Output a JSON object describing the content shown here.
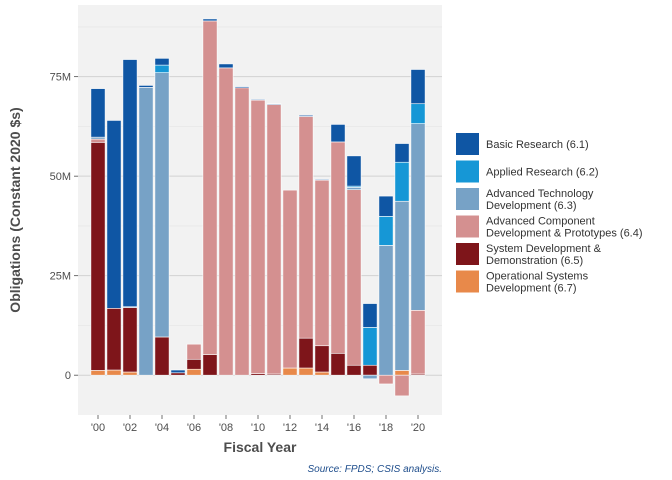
{
  "chart_data": {
    "type": "bar",
    "stacked": true,
    "xlabel": "Fiscal Year",
    "ylabel": "Obligations (Constant 2020 $s)",
    "caption": "Source: FPDS; CSIS analysis.",
    "ylim": [
      -10,
      93
    ],
    "yticks": [
      0,
      25,
      50,
      75
    ],
    "ytick_labels": [
      "0",
      "25M",
      "50M",
      "75M"
    ],
    "grid": true,
    "legend_position": "right",
    "categories": [
      2000,
      2001,
      2002,
      2003,
      2004,
      2005,
      2006,
      2007,
      2008,
      2009,
      2010,
      2011,
      2012,
      2013,
      2014,
      2015,
      2016,
      2017,
      2018,
      2019,
      2020
    ],
    "xtick_labels": [
      "'00",
      "'02",
      "'04",
      "'06",
      "'08",
      "'10",
      "'12",
      "'14",
      "'16",
      "'18",
      "'20"
    ],
    "xtick_years": [
      2000,
      2002,
      2004,
      2006,
      2008,
      2010,
      2012,
      2014,
      2016,
      2018,
      2020
    ],
    "series": [
      {
        "name": "Operational Systems Development (6.7)",
        "color": "#e8894a",
        "values": [
          1.2,
          1.3,
          0.8,
          0,
          0,
          0,
          1.5,
          0,
          0,
          0,
          0,
          0,
          1.8,
          1.8,
          0.8,
          0,
          0,
          0,
          0,
          1.2,
          0
        ]
      },
      {
        "name": "System Development & Demonstration (6.5)",
        "color": "#7e151a",
        "values": [
          57.3,
          15.5,
          16.2,
          0,
          9.6,
          0.6,
          2.5,
          5.2,
          0,
          0,
          0.4,
          0.3,
          0,
          7.5,
          6.6,
          5.5,
          2.5,
          2.5,
          0,
          0,
          0.3
        ]
      },
      {
        "name": "Advanced Component Development & Prototypes (6.4)",
        "color": "#d49090",
        "values": [
          0.8,
          0,
          0,
          0,
          0,
          0,
          3.8,
          83.8,
          77.2,
          72.2,
          68.7,
          67.7,
          44.7,
          55.7,
          41.6,
          53.1,
          44.1,
          0,
          -2.2,
          -5.2,
          16.0
        ]
      },
      {
        "name": "Advanced Technology Development (6.3)",
        "color": "#77a2c6",
        "values": [
          0.5,
          0,
          0.2,
          72.3,
          66.4,
          0,
          0,
          0,
          0,
          0,
          0,
          0,
          0,
          0,
          0,
          0,
          0.6,
          -0.9,
          32.6,
          42.5,
          46.9
        ]
      },
      {
        "name": "Applied Research (6.2)",
        "color": "#1697d6",
        "values": [
          0,
          0,
          0,
          0,
          1.9,
          0,
          0,
          0,
          0,
          0,
          0,
          0,
          0,
          0,
          0,
          0,
          0.3,
          9.5,
          7.3,
          9.8,
          5.0
        ]
      },
      {
        "name": "Basic Research (6.1)",
        "color": "#0f56a4",
        "values": [
          12.2,
          47.2,
          62.1,
          0.5,
          1.7,
          0.7,
          0,
          0.5,
          1.0,
          0.3,
          0.2,
          0.2,
          0,
          0.3,
          0.2,
          4.4,
          7.6,
          6.0,
          5.1,
          4.7,
          8.6
        ]
      }
    ],
    "legend_order": [
      5,
      4,
      3,
      2,
      1,
      0
    ],
    "legend_lines": [
      [
        "Basic Research (6.1)"
      ],
      [
        "Applied Research (6.2)"
      ],
      [
        "Advanced Technology",
        "Development (6.3)"
      ],
      [
        "Advanced Component",
        "Development & Prototypes (6.4)"
      ],
      [
        "System Development &",
        "Demonstration (6.5)"
      ],
      [
        "Operational Systems",
        "Development (6.7)"
      ]
    ],
    "colors": {
      "panel_background": "#f2f2f2",
      "gridline": "#d9d9d9",
      "text": "#4d4d4d",
      "caption": "#1f4e8c"
    }
  }
}
